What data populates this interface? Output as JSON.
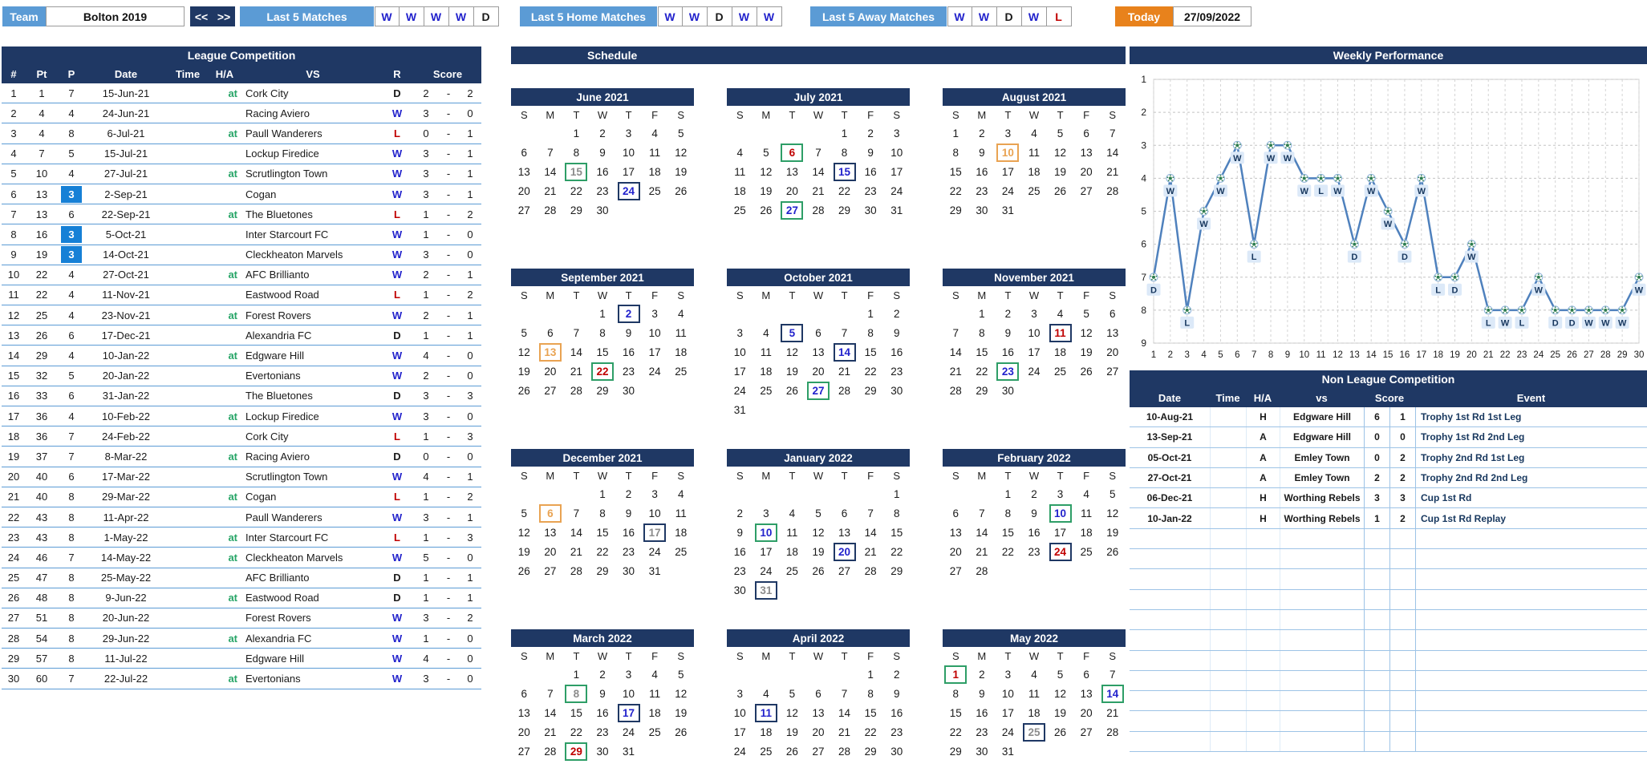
{
  "topbar": {
    "team_label": "Team",
    "team_value": "Bolton 2019",
    "nav_prev": "<<",
    "nav_next": ">>",
    "last5": {
      "label": "Last 5 Matches",
      "results": [
        "W",
        "W",
        "W",
        "W",
        "D"
      ]
    },
    "last5_home": {
      "label": "Last 5 Home Matches",
      "results": [
        "W",
        "W",
        "D",
        "W",
        "W"
      ]
    },
    "last5_away": {
      "label": "Last 5 Away Matches",
      "results": [
        "W",
        "W",
        "D",
        "W",
        "L"
      ]
    },
    "today_label": "Today",
    "today_value": "27/09/2022"
  },
  "league": {
    "title": "League Competition",
    "columns": {
      "n": "#",
      "pt": "Pt",
      "p": "P",
      "date": "Date",
      "time": "Time",
      "ha": "H/A",
      "vs": "VS",
      "r": "R",
      "score": "Score"
    },
    "rows": [
      {
        "n": 1,
        "pt": 1,
        "p": 7,
        "hl": false,
        "date": "15-Jun-21",
        "time": "",
        "ha": "at",
        "vs": "Cork City",
        "r": "D",
        "s1": 2,
        "s2": 2
      },
      {
        "n": 2,
        "pt": 4,
        "p": 4,
        "hl": false,
        "date": "24-Jun-21",
        "time": "",
        "ha": "",
        "vs": "Racing Aviero",
        "r": "W",
        "s1": 3,
        "s2": 0
      },
      {
        "n": 3,
        "pt": 4,
        "p": 8,
        "hl": false,
        "date": "6-Jul-21",
        "time": "",
        "ha": "at",
        "vs": "Paull Wanderers",
        "r": "L",
        "s1": 0,
        "s2": 1
      },
      {
        "n": 4,
        "pt": 7,
        "p": 5,
        "hl": false,
        "date": "15-Jul-21",
        "time": "",
        "ha": "",
        "vs": "Lockup Firedice",
        "r": "W",
        "s1": 3,
        "s2": 1
      },
      {
        "n": 5,
        "pt": 10,
        "p": 4,
        "hl": false,
        "date": "27-Jul-21",
        "time": "",
        "ha": "at",
        "vs": "Scrutlington Town",
        "r": "W",
        "s1": 3,
        "s2": 1
      },
      {
        "n": 6,
        "pt": 13,
        "p": 3,
        "hl": true,
        "date": "2-Sep-21",
        "time": "",
        "ha": "",
        "vs": "Cogan",
        "r": "W",
        "s1": 3,
        "s2": 1
      },
      {
        "n": 7,
        "pt": 13,
        "p": 6,
        "hl": false,
        "date": "22-Sep-21",
        "time": "",
        "ha": "at",
        "vs": "The Bluetones",
        "r": "L",
        "s1": 1,
        "s2": 2
      },
      {
        "n": 8,
        "pt": 16,
        "p": 3,
        "hl": true,
        "date": "5-Oct-21",
        "time": "",
        "ha": "",
        "vs": "Inter Starcourt FC",
        "r": "W",
        "s1": 1,
        "s2": 0
      },
      {
        "n": 9,
        "pt": 19,
        "p": 3,
        "hl": true,
        "date": "14-Oct-21",
        "time": "",
        "ha": "",
        "vs": "Cleckheaton Marvels",
        "r": "W",
        "s1": 3,
        "s2": 0
      },
      {
        "n": 10,
        "pt": 22,
        "p": 4,
        "hl": false,
        "date": "27-Oct-21",
        "time": "",
        "ha": "at",
        "vs": "AFC Brillianto",
        "r": "W",
        "s1": 2,
        "s2": 1
      },
      {
        "n": 11,
        "pt": 22,
        "p": 4,
        "hl": false,
        "date": "11-Nov-21",
        "time": "",
        "ha": "",
        "vs": "Eastwood Road",
        "r": "L",
        "s1": 1,
        "s2": 2
      },
      {
        "n": 12,
        "pt": 25,
        "p": 4,
        "hl": false,
        "date": "23-Nov-21",
        "time": "",
        "ha": "at",
        "vs": "Forest Rovers",
        "r": "W",
        "s1": 2,
        "s2": 1
      },
      {
        "n": 13,
        "pt": 26,
        "p": 6,
        "hl": false,
        "date": "17-Dec-21",
        "time": "",
        "ha": "",
        "vs": "Alexandria FC",
        "r": "D",
        "s1": 1,
        "s2": 1
      },
      {
        "n": 14,
        "pt": 29,
        "p": 4,
        "hl": false,
        "date": "10-Jan-22",
        "time": "",
        "ha": "at",
        "vs": "Edgware Hill",
        "r": "W",
        "s1": 4,
        "s2": 0
      },
      {
        "n": 15,
        "pt": 32,
        "p": 5,
        "hl": false,
        "date": "20-Jan-22",
        "time": "",
        "ha": "",
        "vs": "Evertonians",
        "r": "W",
        "s1": 2,
        "s2": 0
      },
      {
        "n": 16,
        "pt": 33,
        "p": 6,
        "hl": false,
        "date": "31-Jan-22",
        "time": "",
        "ha": "",
        "vs": "The Bluetones",
        "r": "D",
        "s1": 3,
        "s2": 3
      },
      {
        "n": 17,
        "pt": 36,
        "p": 4,
        "hl": false,
        "date": "10-Feb-22",
        "time": "",
        "ha": "at",
        "vs": "Lockup Firedice",
        "r": "W",
        "s1": 3,
        "s2": 0
      },
      {
        "n": 18,
        "pt": 36,
        "p": 7,
        "hl": false,
        "date": "24-Feb-22",
        "time": "",
        "ha": "",
        "vs": "Cork City",
        "r": "L",
        "s1": 1,
        "s2": 3
      },
      {
        "n": 19,
        "pt": 37,
        "p": 7,
        "hl": false,
        "date": "8-Mar-22",
        "time": "",
        "ha": "at",
        "vs": "Racing Aviero",
        "r": "D",
        "s1": 0,
        "s2": 0
      },
      {
        "n": 20,
        "pt": 40,
        "p": 6,
        "hl": false,
        "date": "17-Mar-22",
        "time": "",
        "ha": "",
        "vs": "Scrutlington Town",
        "r": "W",
        "s1": 4,
        "s2": 1
      },
      {
        "n": 21,
        "pt": 40,
        "p": 8,
        "hl": false,
        "date": "29-Mar-22",
        "time": "",
        "ha": "at",
        "vs": "Cogan",
        "r": "L",
        "s1": 1,
        "s2": 2
      },
      {
        "n": 22,
        "pt": 43,
        "p": 8,
        "hl": false,
        "date": "11-Apr-22",
        "time": "",
        "ha": "",
        "vs": "Paull Wanderers",
        "r": "W",
        "s1": 3,
        "s2": 1
      },
      {
        "n": 23,
        "pt": 43,
        "p": 8,
        "hl": false,
        "date": "1-May-22",
        "time": "",
        "ha": "at",
        "vs": "Inter Starcourt FC",
        "r": "L",
        "s1": 1,
        "s2": 3
      },
      {
        "n": 24,
        "pt": 46,
        "p": 7,
        "hl": false,
        "date": "14-May-22",
        "time": "",
        "ha": "at",
        "vs": "Cleckheaton Marvels",
        "r": "W",
        "s1": 5,
        "s2": 0
      },
      {
        "n": 25,
        "pt": 47,
        "p": 8,
        "hl": false,
        "date": "25-May-22",
        "time": "",
        "ha": "",
        "vs": "AFC Brillianto",
        "r": "D",
        "s1": 1,
        "s2": 1
      },
      {
        "n": 26,
        "pt": 48,
        "p": 8,
        "hl": false,
        "date": "9-Jun-22",
        "time": "",
        "ha": "at",
        "vs": "Eastwood Road",
        "r": "D",
        "s1": 1,
        "s2": 1
      },
      {
        "n": 27,
        "pt": 51,
        "p": 8,
        "hl": false,
        "date": "20-Jun-22",
        "time": "",
        "ha": "",
        "vs": "Forest Rovers",
        "r": "W",
        "s1": 3,
        "s2": 2
      },
      {
        "n": 28,
        "pt": 54,
        "p": 8,
        "hl": false,
        "date": "29-Jun-22",
        "time": "",
        "ha": "at",
        "vs": "Alexandria FC",
        "r": "W",
        "s1": 1,
        "s2": 0
      },
      {
        "n": 29,
        "pt": 57,
        "p": 8,
        "hl": false,
        "date": "11-Jul-22",
        "time": "",
        "ha": "",
        "vs": "Edgware Hill",
        "r": "W",
        "s1": 4,
        "s2": 0
      },
      {
        "n": 30,
        "pt": 60,
        "p": 7,
        "hl": false,
        "date": "22-Jul-22",
        "time": "",
        "ha": "at",
        "vs": "Evertonians",
        "r": "W",
        "s1": 3,
        "s2": 0
      }
    ]
  },
  "schedule": {
    "title": "Schedule",
    "weekdays": [
      "S",
      "M",
      "T",
      "W",
      "T",
      "F",
      "S"
    ],
    "months": [
      {
        "name": "June 2021",
        "start": 2,
        "days": 30,
        "marks": {
          "15": {
            "b": "away",
            "t": "draw"
          },
          "24": {
            "b": "home",
            "t": "win"
          }
        }
      },
      {
        "name": "July 2021",
        "start": 4,
        "days": 31,
        "marks": {
          "6": {
            "b": "away",
            "t": "loss"
          },
          "15": {
            "b": "home",
            "t": "win"
          },
          "27": {
            "b": "away",
            "t": "win"
          }
        }
      },
      {
        "name": "August 2021",
        "start": 0,
        "days": 31,
        "marks": {
          "10": {
            "b": "cup",
            "t": "cup"
          }
        }
      },
      {
        "name": "September 2021",
        "start": 3,
        "days": 30,
        "marks": {
          "2": {
            "b": "home",
            "t": "win"
          },
          "13": {
            "b": "cup",
            "t": "cup"
          },
          "22": {
            "b": "away",
            "t": "loss"
          }
        }
      },
      {
        "name": "October 2021",
        "start": 5,
        "days": 31,
        "marks": {
          "5": {
            "b": "home",
            "t": "win"
          },
          "14": {
            "b": "home",
            "t": "win"
          },
          "27": {
            "b": "away",
            "t": "win"
          }
        }
      },
      {
        "name": "November 2021",
        "start": 1,
        "days": 30,
        "marks": {
          "11": {
            "b": "home",
            "t": "loss"
          },
          "23": {
            "b": "away",
            "t": "win"
          }
        }
      },
      {
        "name": "December 2021",
        "start": 3,
        "days": 31,
        "marks": {
          "6": {
            "b": "cup",
            "t": "cup"
          },
          "17": {
            "b": "home",
            "t": "draw"
          }
        }
      },
      {
        "name": "January 2022",
        "start": 6,
        "days": 31,
        "marks": {
          "10": {
            "b": "away",
            "t": "win"
          },
          "20": {
            "b": "home",
            "t": "win"
          },
          "31": {
            "b": "home",
            "t": "draw"
          }
        }
      },
      {
        "name": "February 2022",
        "start": 2,
        "days": 28,
        "marks": {
          "10": {
            "b": "away",
            "t": "win"
          },
          "24": {
            "b": "home",
            "t": "loss"
          }
        }
      },
      {
        "name": "March 2022",
        "start": 2,
        "days": 31,
        "marks": {
          "8": {
            "b": "away",
            "t": "draw"
          },
          "17": {
            "b": "home",
            "t": "win"
          },
          "29": {
            "b": "away",
            "t": "loss"
          }
        }
      },
      {
        "name": "April 2022",
        "start": 5,
        "days": 30,
        "marks": {
          "11": {
            "b": "home",
            "t": "win"
          }
        }
      },
      {
        "name": "May 2022",
        "start": 0,
        "days": 31,
        "marks": {
          "1": {
            "b": "away",
            "t": "loss"
          },
          "14": {
            "b": "away",
            "t": "win"
          },
          "25": {
            "b": "home",
            "t": "draw"
          }
        }
      }
    ]
  },
  "chart_data": {
    "type": "line",
    "title": "Weekly Performance",
    "x": [
      1,
      2,
      3,
      4,
      5,
      6,
      7,
      8,
      9,
      10,
      11,
      12,
      13,
      14,
      15,
      16,
      17,
      18,
      19,
      20,
      21,
      22,
      23,
      24,
      25,
      26,
      27,
      28,
      29,
      30
    ],
    "positions": [
      7,
      4,
      8,
      5,
      4,
      3,
      6,
      3,
      3,
      4,
      4,
      4,
      6,
      4,
      5,
      6,
      4,
      7,
      7,
      6,
      8,
      8,
      8,
      7,
      8,
      8,
      8,
      8,
      8,
      7
    ],
    "result_labels": [
      "D",
      "W",
      "L",
      "W",
      "W",
      "W",
      "L",
      "W",
      "W",
      "W",
      "L",
      "W",
      "D",
      "W",
      "W",
      "D",
      "W",
      "L",
      "D",
      "W",
      "L",
      "W",
      "L",
      "W",
      "D",
      "D",
      "W",
      "W",
      "W",
      "W"
    ],
    "xlabel": "",
    "ylabel": "",
    "y_axis": {
      "min": 1,
      "max": 9,
      "inverted": true,
      "ticks": [
        1,
        2,
        3,
        4,
        5,
        6,
        7,
        8,
        9
      ]
    },
    "grid": true,
    "line_color": "#4F81BD"
  },
  "nonleague": {
    "title": "Non League Competition",
    "columns": {
      "date": "Date",
      "time": "Time",
      "ha": "H/A",
      "vs": "vs",
      "score": "Score",
      "event": "Event"
    },
    "rows": [
      {
        "date": "10-Aug-21",
        "time": "",
        "ha": "H",
        "vs": "Edgware Hill",
        "s1": 6,
        "s2": 1,
        "event": "Trophy 1st Rd 1st Leg"
      },
      {
        "date": "13-Sep-21",
        "time": "",
        "ha": "A",
        "vs": "Edgware Hill",
        "s1": 0,
        "s2": 0,
        "event": "Trophy 1st Rd 2nd Leg"
      },
      {
        "date": "05-Oct-21",
        "time": "",
        "ha": "A",
        "vs": "Emley Town",
        "s1": 0,
        "s2": 2,
        "event": "Trophy 2nd Rd 1st Leg"
      },
      {
        "date": "27-Oct-21",
        "time": "",
        "ha": "A",
        "vs": "Emley Town",
        "s1": 2,
        "s2": 2,
        "event": "Trophy 2nd Rd 2nd Leg"
      },
      {
        "date": "06-Dec-21",
        "time": "",
        "ha": "H",
        "vs": "Worthing Rebels",
        "s1": 3,
        "s2": 3,
        "event": "Cup 1st Rd"
      },
      {
        "date": "10-Jan-22",
        "time": "",
        "ha": "H",
        "vs": "Worthing Rebels",
        "s1": 1,
        "s2": 2,
        "event": "Cup 1st Rd Replay"
      }
    ],
    "empty_rows": 11
  },
  "colors": {
    "navy": "#1F3864",
    "blue_button": "#5B9BD5",
    "orange_today": "#E8821C",
    "win": "#2222CC",
    "loss": "#C00000",
    "draw_gray": "#8C8C8C",
    "at_green": "#27A567",
    "position_highlight": "#1680D6",
    "home_border": "#1F3864",
    "away_border": "#2E9E67",
    "cup_border": "#E9A352",
    "chart_line": "#4F81BD"
  }
}
